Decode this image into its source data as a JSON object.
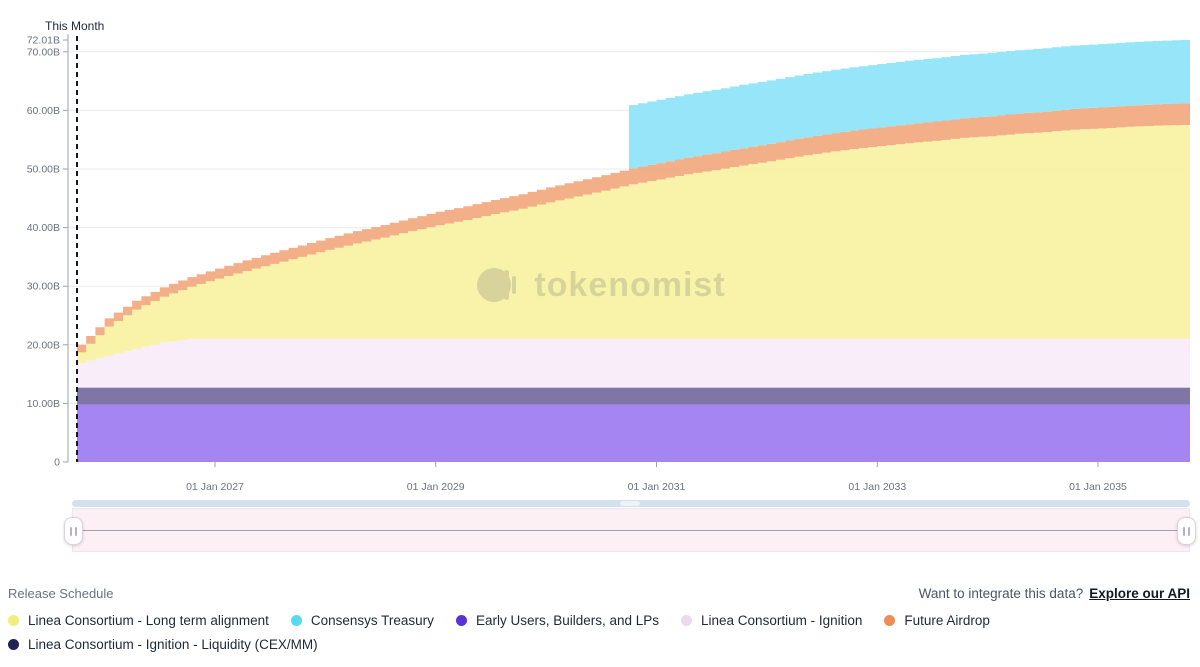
{
  "chart": {
    "now_label": "This Month"
  },
  "chart_data": {
    "type": "area",
    "stacked": true,
    "stepped": "monthly",
    "unit": "tokens (billions)",
    "total_supply_label": "72.01B",
    "ylim": [
      0,
      72.01
    ],
    "x_start": "2025-10",
    "x_end": "2035-10",
    "watermark": "tokenomist",
    "now_line": {
      "label": "This Month",
      "month": 0
    },
    "axes": {
      "y_ticks": [
        {
          "label": "0",
          "v": 0
        },
        {
          "label": "10.00B",
          "v": 10
        },
        {
          "label": "20.00B",
          "v": 20
        },
        {
          "label": "30.00B",
          "v": 30
        },
        {
          "label": "40.00B",
          "v": 40
        },
        {
          "label": "50.00B",
          "v": 50
        },
        {
          "label": "60.00B",
          "v": 60
        },
        {
          "label": "70.00B",
          "v": 70
        },
        {
          "label": "72.01B",
          "v": 72.01
        }
      ],
      "x_ticks": [
        {
          "label": "01 Jan 2027",
          "month": 15
        },
        {
          "label": "01 Jan 2029",
          "month": 39
        },
        {
          "label": "01 Jan 2031",
          "month": 63
        },
        {
          "label": "01 Jan 2033",
          "month": 87
        },
        {
          "label": "01 Jan 2035",
          "month": 111
        }
      ]
    },
    "x_quarters": [
      "2025-10",
      "2026-01",
      "2026-04",
      "2026-07",
      "2026-10",
      "2027-01",
      "2027-04",
      "2027-07",
      "2027-10",
      "2028-01",
      "2028-04",
      "2028-07",
      "2028-10",
      "2029-01",
      "2029-04",
      "2029-07",
      "2029-10",
      "2030-01",
      "2030-04",
      "2030-07",
      "2030-10",
      "2031-01",
      "2031-04",
      "2031-07",
      "2031-10",
      "2032-01",
      "2032-04",
      "2032-07",
      "2032-10",
      "2033-01",
      "2033-04",
      "2033-07",
      "2033-10",
      "2034-01",
      "2034-04",
      "2034-07",
      "2034-10",
      "2035-01",
      "2035-04",
      "2035-07",
      "2035-10"
    ],
    "series": [
      {
        "id": "early-users",
        "name": "Early Users, Builders, and LPs",
        "legend_color": "#5733d9",
        "fill_color": "#9c7bf1",
        "interp": "flat",
        "values": 9.8
      },
      {
        "id": "ignition-liquidity",
        "name": "Linea Consortium - Ignition - Liquidity (CEX/MM)",
        "legend_color": "#232257",
        "fill_color": "#736b9e",
        "interp": "flat",
        "values": 2.9
      },
      {
        "id": "ignition",
        "name": "Linea Consortium - Ignition",
        "legend_color": "#eed8f0",
        "fill_color": "#f8ebfa",
        "interp": "linear",
        "values": [
          4.2,
          5.4,
          6.6,
          7.7,
          8.3,
          8.3,
          8.3,
          8.3,
          8.3,
          8.3,
          8.3,
          8.3,
          8.3,
          8.3,
          8.3,
          8.3,
          8.3,
          8.3,
          8.3,
          8.3,
          8.3,
          8.3,
          8.3,
          8.3,
          8.3,
          8.3,
          8.3,
          8.3,
          8.3,
          8.3,
          8.3,
          8.3,
          8.3,
          8.3,
          8.3,
          8.3,
          8.3,
          8.3,
          8.3,
          8.3,
          8.3
        ]
      },
      {
        "id": "long-term-alignment",
        "name": "Linea Consortium - Long term alignment",
        "legend_color": "#f1ee7d",
        "fill_color": "#f9f2a2",
        "interp": "linear",
        "values": [
          1.8,
          5.0,
          6.7,
          7.8,
          8.9,
          10.3,
          11.6,
          12.8,
          14.0,
          15.2,
          16.3,
          17.3,
          18.4,
          19.4,
          20.3,
          21.3,
          22.2,
          23.3,
          24.3,
          25.3,
          26.4,
          27.2,
          28.1,
          28.8,
          29.6,
          30.3,
          31.1,
          31.8,
          32.4,
          32.9,
          33.4,
          33.8,
          34.3,
          34.6,
          35.0,
          35.3,
          35.7,
          35.9,
          36.2,
          36.4,
          36.5
        ]
      },
      {
        "id": "future-airdrop",
        "name": "Future Airdrop",
        "legend_color": "#ee8c55",
        "fill_color": "#f2a87d",
        "interp": "linear",
        "values": [
          1.3,
          1.4,
          1.5,
          1.6,
          1.65,
          1.7,
          1.8,
          1.9,
          1.95,
          2.0,
          2.1,
          2.15,
          2.2,
          2.3,
          2.35,
          2.4,
          2.5,
          2.55,
          2.6,
          2.65,
          2.7,
          2.8,
          2.85,
          2.9,
          2.95,
          3.0,
          3.05,
          3.1,
          3.15,
          3.2,
          3.25,
          3.3,
          3.35,
          3.4,
          3.45,
          3.5,
          3.55,
          3.6,
          3.6,
          3.65,
          3.7
        ]
      },
      {
        "id": "consensys-treasury",
        "name": "Consensys Treasury",
        "legend_color": "#55dbed",
        "fill_color": "#8ee3f8",
        "interp": "step",
        "values": [
          0,
          0,
          0,
          0,
          0,
          0,
          0,
          0,
          0,
          0,
          0,
          0,
          0,
          0,
          0,
          0,
          0,
          0,
          0,
          0,
          10.81,
          10.81,
          10.81,
          10.81,
          10.81,
          10.81,
          10.81,
          10.81,
          10.81,
          10.81,
          10.81,
          10.81,
          10.81,
          10.81,
          10.81,
          10.81,
          10.81,
          10.81,
          10.81,
          10.81,
          10.81
        ]
      }
    ]
  },
  "footer": {
    "release_schedule_label": "Release Schedule",
    "api_prompt": "Want to integrate this data?",
    "api_link": "Explore our API",
    "legend_rows": [
      [
        "long-term-alignment",
        "consensys-treasury",
        "early-users",
        "ignition",
        "future-airdrop"
      ],
      [
        "ignition-liquidity"
      ]
    ]
  }
}
